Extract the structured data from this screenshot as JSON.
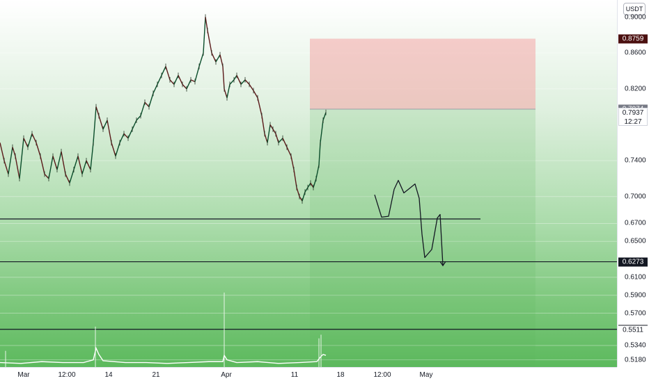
{
  "chart_data": {
    "type": "candlestick",
    "symbol_currency": "USDT",
    "x_axis_labels": [
      "Mar",
      "12:00",
      "14",
      "21",
      "Apr",
      "11",
      "18",
      "12:00",
      "May"
    ],
    "y_axis_labels": [
      "0.9000",
      "0.8600",
      "0.8200",
      "0.7400",
      "0.7000",
      "0.6700",
      "0.6500",
      "0.6100",
      "0.5900",
      "0.5700",
      "0.5340",
      "0.5180"
    ],
    "price_badges": [
      {
        "label": "0.8759",
        "bg": "#4b1010",
        "fg": "#ffffff"
      },
      {
        "label": "0.7974",
        "bg": "#787b86",
        "fg": "#ffffff"
      },
      {
        "label": "0.7937",
        "bg": "#ffffff",
        "fg": "#131722"
      },
      {
        "label": "0.6273",
        "bg": "#131722",
        "fg": "#ffffff"
      },
      {
        "label": "0.5520",
        "bg": "#131722",
        "fg": "#ffffff"
      },
      {
        "label": "0.5511",
        "bg": "#ffffff",
        "fg": "#131722"
      }
    ],
    "countdown": "12:27",
    "horizontal_lines": [
      0.675,
      0.6273,
      0.552
    ],
    "position_box": {
      "entry": 0.7974,
      "stop": 0.8759,
      "kind": "short"
    },
    "price_path": [
      [
        0,
        0.76
      ],
      [
        6,
        0.74
      ],
      [
        12,
        0.725
      ],
      [
        18,
        0.755
      ],
      [
        22,
        0.745
      ],
      [
        28,
        0.72
      ],
      [
        34,
        0.765
      ],
      [
        40,
        0.755
      ],
      [
        46,
        0.77
      ],
      [
        52,
        0.76
      ],
      [
        58,
        0.745
      ],
      [
        64,
        0.725
      ],
      [
        70,
        0.72
      ],
      [
        76,
        0.745
      ],
      [
        82,
        0.73
      ],
      [
        88,
        0.75
      ],
      [
        94,
        0.725
      ],
      [
        100,
        0.715
      ],
      [
        106,
        0.73
      ],
      [
        112,
        0.745
      ],
      [
        118,
        0.725
      ],
      [
        124,
        0.74
      ],
      [
        130,
        0.73
      ],
      [
        134,
        0.76
      ],
      [
        138,
        0.8
      ],
      [
        142,
        0.79
      ],
      [
        148,
        0.775
      ],
      [
        154,
        0.785
      ],
      [
        160,
        0.76
      ],
      [
        166,
        0.745
      ],
      [
        172,
        0.76
      ],
      [
        178,
        0.77
      ],
      [
        184,
        0.765
      ],
      [
        190,
        0.775
      ],
      [
        196,
        0.785
      ],
      [
        202,
        0.79
      ],
      [
        208,
        0.805
      ],
      [
        214,
        0.8
      ],
      [
        220,
        0.815
      ],
      [
        226,
        0.825
      ],
      [
        232,
        0.835
      ],
      [
        238,
        0.845
      ],
      [
        244,
        0.83
      ],
      [
        250,
        0.825
      ],
      [
        256,
        0.835
      ],
      [
        262,
        0.825
      ],
      [
        268,
        0.82
      ],
      [
        274,
        0.83
      ],
      [
        280,
        0.828
      ],
      [
        286,
        0.845
      ],
      [
        292,
        0.86
      ],
      [
        295,
        0.9
      ],
      [
        298,
        0.885
      ],
      [
        304,
        0.86
      ],
      [
        310,
        0.85
      ],
      [
        316,
        0.858
      ],
      [
        320,
        0.845
      ],
      [
        322,
        0.82
      ],
      [
        326,
        0.81
      ],
      [
        330,
        0.825
      ],
      [
        336,
        0.83
      ],
      [
        340,
        0.835
      ],
      [
        346,
        0.825
      ],
      [
        352,
        0.83
      ],
      [
        358,
        0.825
      ],
      [
        364,
        0.818
      ],
      [
        370,
        0.81
      ],
      [
        376,
        0.79
      ],
      [
        380,
        0.77
      ],
      [
        384,
        0.76
      ],
      [
        388,
        0.78
      ],
      [
        392,
        0.775
      ],
      [
        396,
        0.77
      ],
      [
        400,
        0.76
      ],
      [
        406,
        0.765
      ],
      [
        412,
        0.755
      ],
      [
        418,
        0.745
      ],
      [
        422,
        0.73
      ],
      [
        426,
        0.71
      ],
      [
        430,
        0.7
      ],
      [
        434,
        0.695
      ],
      [
        438,
        0.705
      ],
      [
        442,
        0.71
      ],
      [
        446,
        0.715
      ],
      [
        450,
        0.71
      ],
      [
        454,
        0.72
      ],
      [
        458,
        0.735
      ],
      [
        460,
        0.76
      ],
      [
        464,
        0.785
      ],
      [
        468,
        0.7937
      ]
    ],
    "volume": [
      [
        0,
        0.515
      ],
      [
        30,
        0.514
      ],
      [
        60,
        0.516
      ],
      [
        90,
        0.515
      ],
      [
        120,
        0.515
      ],
      [
        134,
        0.518
      ],
      [
        138,
        0.531
      ],
      [
        142,
        0.524
      ],
      [
        148,
        0.517
      ],
      [
        180,
        0.515
      ],
      [
        210,
        0.515
      ],
      [
        240,
        0.514
      ],
      [
        270,
        0.515
      ],
      [
        300,
        0.516
      ],
      [
        320,
        0.516
      ],
      [
        322,
        0.523
      ],
      [
        326,
        0.518
      ],
      [
        340,
        0.515
      ],
      [
        370,
        0.516
      ],
      [
        400,
        0.514
      ],
      [
        430,
        0.515
      ],
      [
        455,
        0.516
      ],
      [
        460,
        0.521
      ],
      [
        464,
        0.524
      ],
      [
        468,
        0.523
      ]
    ],
    "volume_spikes": [
      [
        8,
        0.528
      ],
      [
        137,
        0.555
      ],
      [
        322,
        0.593
      ],
      [
        458,
        0.542
      ],
      [
        461,
        0.546
      ]
    ],
    "projection_path": [
      [
        538,
        0.702
      ],
      [
        548,
        0.677
      ],
      [
        558,
        0.678
      ],
      [
        566,
        0.708
      ],
      [
        572,
        0.718
      ],
      [
        580,
        0.704
      ],
      [
        588,
        0.709
      ],
      [
        596,
        0.714
      ],
      [
        602,
        0.698
      ],
      [
        606,
        0.658
      ],
      [
        610,
        0.632
      ],
      [
        620,
        0.641
      ],
      [
        628,
        0.676
      ],
      [
        632,
        0.68
      ],
      [
        636,
        0.623
      ]
    ],
    "ylim": [
      0.51,
      0.919
    ]
  }
}
